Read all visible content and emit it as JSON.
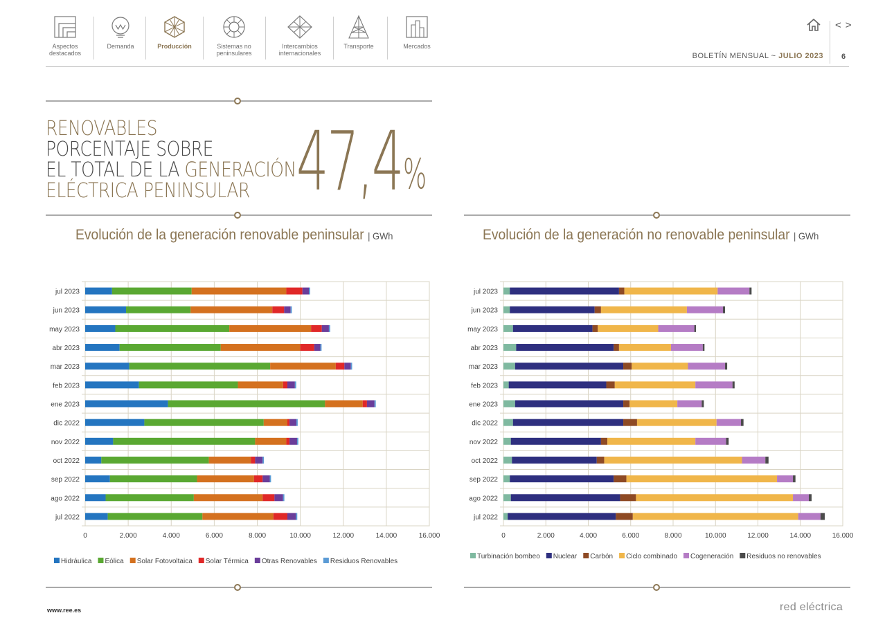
{
  "nav": {
    "items": [
      {
        "label_1": "Aspectos",
        "label_2": "destacados"
      },
      {
        "label_1": "Demanda",
        "label_2": ""
      },
      {
        "label_1": "Producción",
        "label_2": ""
      },
      {
        "label_1": "Sistemas no",
        "label_2": "peninsulares"
      },
      {
        "label_1": "Intercambios",
        "label_2": "internacionales"
      },
      {
        "label_1": "Transporte",
        "label_2": ""
      },
      {
        "label_1": "Mercados",
        "label_2": ""
      }
    ],
    "active_index": 2,
    "bulletin_prefix": "BOLETÍN MENSUAL  ~ ",
    "bulletin_month": "JULIO 2023",
    "page_number": "6",
    "prev_glyph": "<",
    "next_glyph": ">"
  },
  "headline": {
    "line1": "RENOVABLES",
    "line2": "PORCENTAJE SOBRE",
    "line3a": "EL TOTAL DE LA ",
    "line3b": "GENERACIÓN",
    "line4": "ELÉCTRICA PENINSULAR",
    "value": "47,4",
    "unit": "%"
  },
  "footer": {
    "url": "www.ree.es",
    "logo_text": "red eléctrica"
  },
  "colors": {
    "gold": "#8b7654",
    "grid": "#d9d4c4"
  },
  "chart_data": [
    {
      "type": "bar",
      "orientation": "horizontal",
      "stacked": true,
      "title": "Evolución de la generación renovable peninsular",
      "unit": "GWh",
      "categories": [
        "jul 2023",
        "jun 2023",
        "may 2023",
        "abr 2023",
        "mar 2023",
        "feb 2023",
        "ene 2023",
        "dic 2022",
        "nov 2022",
        "oct 2022",
        "sep 2022",
        "ago 2022",
        "jul 2022"
      ],
      "xlim": [
        0,
        16000
      ],
      "xticks": [
        "0",
        "2.000",
        "4.000",
        "6.000",
        "8.000",
        "10.000",
        "12.000",
        "14.000",
        "16.000"
      ],
      "grid": true,
      "legend_position": "bottom",
      "series": [
        {
          "name": "Hidráulica",
          "color": "#2475c0",
          "values": [
            1250,
            1900,
            1400,
            1600,
            2050,
            2500,
            3850,
            2750,
            1300,
            750,
            1150,
            950,
            1050
          ]
        },
        {
          "name": "Eólica",
          "color": "#5aa832",
          "values": [
            3700,
            3000,
            5300,
            4700,
            6550,
            4600,
            7300,
            5550,
            6600,
            5000,
            4050,
            4100,
            4400
          ]
        },
        {
          "name": "Solar Fotovoltaica",
          "color": "#d4711f",
          "values": [
            4400,
            3800,
            3800,
            3700,
            3050,
            2100,
            1750,
            1100,
            1450,
            1950,
            2650,
            3200,
            3300
          ]
        },
        {
          "name": "Solar Térmica",
          "color": "#e02828",
          "values": [
            750,
            550,
            500,
            650,
            400,
            200,
            200,
            100,
            150,
            200,
            400,
            550,
            650
          ]
        },
        {
          "name": "Otras Renovables",
          "color": "#6a3d9a",
          "values": [
            300,
            300,
            330,
            280,
            300,
            350,
            350,
            320,
            350,
            350,
            330,
            400,
            400
          ]
        },
        {
          "name": "Residuos Renovables",
          "color": "#5b9bd5",
          "values": [
            60,
            60,
            60,
            60,
            60,
            60,
            60,
            60,
            60,
            60,
            60,
            60,
            60
          ]
        }
      ]
    },
    {
      "type": "bar",
      "orientation": "horizontal",
      "stacked": true,
      "title": "Evolución de la generación no renovable peninsular",
      "unit": "GWh",
      "categories": [
        "jul 2023",
        "jun 2023",
        "may 2023",
        "abr 2023",
        "mar 2023",
        "feb 2023",
        "ene 2023",
        "dic 2022",
        "nov 2022",
        "oct 2022",
        "sep 2022",
        "ago 2022",
        "jul 2022"
      ],
      "xlim": [
        0,
        16000
      ],
      "xticks": [
        "0",
        "2.000",
        "4.000",
        "6.000",
        "8.000",
        "10.000",
        "12.000",
        "14.000",
        "16.000"
      ],
      "grid": true,
      "legend_position": "bottom",
      "series": [
        {
          "name": "Turbinación bombeo",
          "color": "#7fb9a0",
          "values": [
            300,
            300,
            450,
            600,
            550,
            250,
            550,
            450,
            350,
            400,
            300,
            350,
            200
          ]
        },
        {
          "name": "Nuclear",
          "color": "#2e2f7f",
          "values": [
            5150,
            4000,
            3750,
            4600,
            5100,
            4600,
            5100,
            5200,
            4250,
            4000,
            4900,
            5150,
            5100
          ]
        },
        {
          "name": "Carbón",
          "color": "#8e4a24",
          "values": [
            250,
            300,
            250,
            250,
            400,
            400,
            300,
            650,
            300,
            350,
            600,
            750,
            800
          ]
        },
        {
          "name": "Ciclo combinado",
          "color": "#f0b64a",
          "values": [
            4400,
            4050,
            2850,
            2450,
            2650,
            3800,
            2250,
            3750,
            4150,
            6500,
            7100,
            7400,
            7800
          ]
        },
        {
          "name": "Cogeneración",
          "color": "#b57cc5",
          "values": [
            1500,
            1700,
            1700,
            1500,
            1750,
            1750,
            1150,
            1150,
            1450,
            1100,
            750,
            750,
            1050
          ]
        },
        {
          "name": "Residuos no renovables",
          "color": "#4b4b4b",
          "values": [
            100,
            100,
            80,
            80,
            100,
            100,
            100,
            120,
            120,
            150,
            120,
            130,
            200
          ]
        }
      ]
    }
  ]
}
